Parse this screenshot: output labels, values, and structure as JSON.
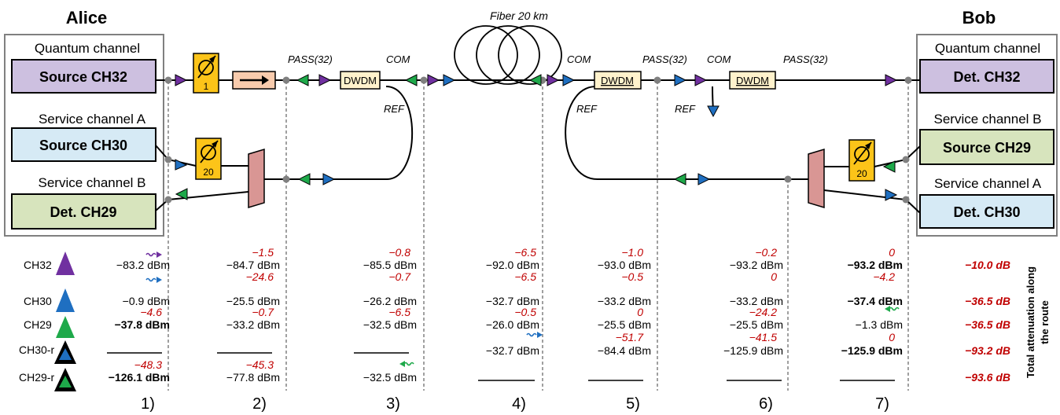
{
  "titles": {
    "alice": "Alice",
    "bob": "Bob",
    "fiber": "Fiber 20 km"
  },
  "alice": {
    "quantum_label": "Quantum channel",
    "source32": "Source CH32",
    "serviceA_label": "Service channel A",
    "source30": "Source CH30",
    "serviceB_label": "Service channel B",
    "det29": "Det. CH29",
    "atten1": "1",
    "atten20": "20"
  },
  "bob": {
    "quantum_label": "Quantum channel",
    "det32": "Det. CH32",
    "serviceB_label": "Service channel B",
    "source29": "Source CH29",
    "serviceA_label": "Service channel A",
    "det30": "Det. CH30",
    "atten20": "20"
  },
  "ports": {
    "pass1": "PASS(32)",
    "com1": "COM",
    "ref1": "REF",
    "com2": "COM",
    "pass2": "PASS(32)",
    "ref2": "REF",
    "com3": "COM",
    "pass3": "PASS(32)",
    "ref3": "REF"
  },
  "dwdm": {
    "d1": "DWDM",
    "d2": "DWDM",
    "d3": "DWDM"
  },
  "channels": [
    "CH32",
    "CH30",
    "CH29",
    "CH30-r",
    "CH29-r"
  ],
  "colors": {
    "ch32": "#7030a0",
    "ch30": "#1f6fc1",
    "ch29": "#1ea94a",
    "loss": "#c00000",
    "box_q": "#cdc0e0",
    "box_a": "#d6eaf5",
    "box_b": "#d7e4bd",
    "atten": "#fcc419",
    "isolator": "#f8cbad",
    "mux": "#d99694",
    "dwdm_box": "#fff2cc"
  },
  "points": [
    "1)",
    "2)",
    "3)",
    "4)",
    "5)",
    "6)",
    "7)"
  ],
  "table": {
    "col1": [
      "−83.2 dBm",
      "−0.9 dBm",
      "−37.8 dBm",
      "",
      "−126.1 dBm"
    ],
    "col2": [
      "−84.7 dBm",
      "−25.5 dBm",
      "−33.2 dBm",
      "",
      "−77.8 dBm"
    ],
    "col3": [
      "−85.5 dBm",
      "−26.2 dBm",
      "−32.5 dBm",
      "",
      "−32.5 dBm"
    ],
    "col4": [
      "−92.0 dBm",
      "−32.7 dBm",
      "−26.0 dBm",
      "−32.7 dBm",
      ""
    ],
    "col5": [
      "−93.0 dBm",
      "−33.2 dBm",
      "−25.5 dBm",
      "−84.4 dBm",
      ""
    ],
    "col6": [
      "−93.2 dBm",
      "−33.2 dBm",
      "−25.5 dBm",
      "−125.9 dBm",
      ""
    ],
    "col7": [
      "−93.2 dBm",
      "−37.4 dBm",
      "−1.3 dBm",
      "−125.9 dBm",
      ""
    ]
  },
  "losses": {
    "c1": [
      "",
      "",
      "−4.6",
      "",
      "−48.3"
    ],
    "c2": [
      "−1.5",
      "−24.6",
      "−0.7",
      "",
      "−45.3"
    ],
    "c3": [
      "−0.8",
      "−0.7",
      "−6.5",
      "",
      ""
    ],
    "c4": [
      "−6.5",
      "−6.5",
      "−0.5",
      "",
      ""
    ],
    "c5": [
      "−1.0",
      "−0.5",
      "0",
      "−51.7",
      ""
    ],
    "c6": [
      "−0.2",
      "0",
      "−24.2",
      "−41.5",
      ""
    ],
    "c7": [
      "0",
      "−4.2",
      "",
      "0",
      ""
    ]
  },
  "totals": [
    "−10.0 dB",
    "−36.5 dB",
    "−36.5 dB",
    "−93.2 dB",
    "−93.6 dB"
  ],
  "totals_label": [
    "Total attenuation along",
    "the route"
  ]
}
